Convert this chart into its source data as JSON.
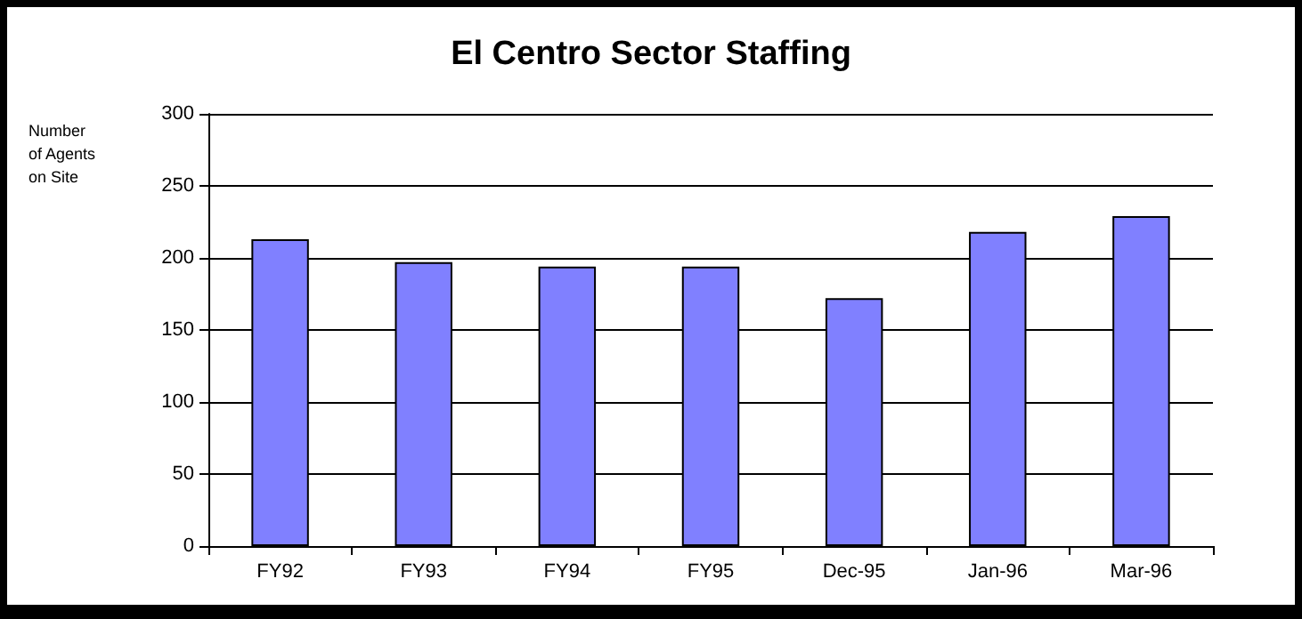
{
  "chart_data": {
    "type": "bar",
    "title": "El Centro Sector Staffing",
    "ylabel": "Number of Agents on Site",
    "categories": [
      "FY92",
      "FY93",
      "FY94",
      "FY95",
      "Dec-95",
      "Jan-96",
      "Mar-96"
    ],
    "values": [
      213,
      197,
      194,
      194,
      172,
      218,
      229
    ],
    "color": "#8080ff",
    "ylim": [
      0,
      300
    ],
    "yticks": [
      0,
      50,
      100,
      150,
      200,
      250,
      300
    ],
    "grid": "y"
  }
}
